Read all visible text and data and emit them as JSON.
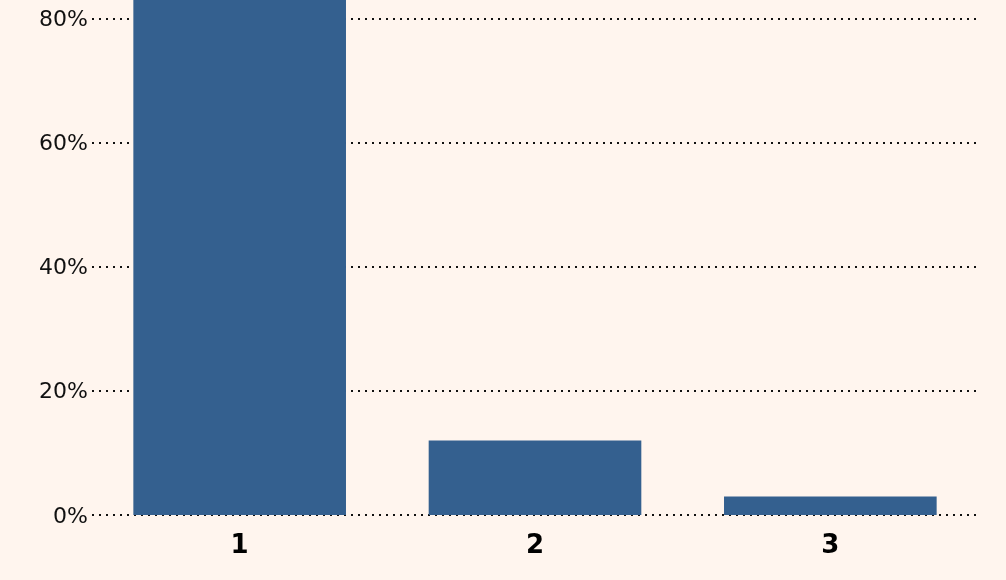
{
  "chart_data": {
    "type": "bar",
    "categories": [
      "1",
      "2",
      "3"
    ],
    "values": [
      83,
      12,
      3
    ],
    "color": "#34608f",
    "ylim": [
      0,
      83
    ],
    "yticks": [
      {
        "value": 0,
        "label": "0%"
      },
      {
        "value": 20,
        "label": "20%"
      },
      {
        "value": 40,
        "label": "40%"
      },
      {
        "value": 60,
        "label": "60%"
      },
      {
        "value": 80,
        "label": "80%"
      }
    ],
    "grid": "y"
  }
}
